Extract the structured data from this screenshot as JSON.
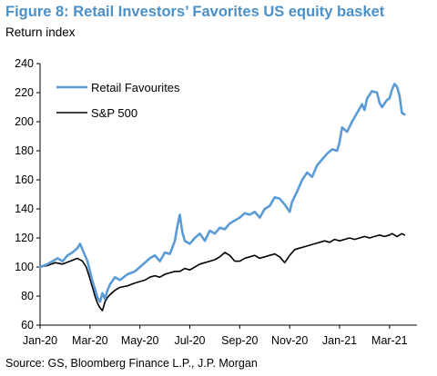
{
  "chart_data": {
    "type": "line",
    "title": "Figure 8: Retail Investors’ Favorites US equity basket",
    "subtitle": "Return index",
    "source": "Source: GS, Bloomberg Finance L.P., J.P. Morgan",
    "ylim": [
      60,
      240
    ],
    "yticks": [
      60,
      80,
      100,
      120,
      140,
      160,
      180,
      200,
      220,
      240
    ],
    "xlim": [
      0,
      15.1
    ],
    "xticks": [
      {
        "x": 0,
        "label": "Jan-20"
      },
      {
        "x": 2,
        "label": "Mar-20"
      },
      {
        "x": 4,
        "label": "May-20"
      },
      {
        "x": 6,
        "label": "Jul-20"
      },
      {
        "x": 8,
        "label": "Sep-20"
      },
      {
        "x": 10,
        "label": "Nov-20"
      },
      {
        "x": 12,
        "label": "Jan-21"
      },
      {
        "x": 14,
        "label": "Mar-21"
      }
    ],
    "grid": false,
    "legend": "top-left",
    "series": [
      {
        "name": "Retail Favourites",
        "color": "#5b9bd5",
        "points": [
          [
            0,
            100
          ],
          [
            0.3,
            102
          ],
          [
            0.5,
            104
          ],
          [
            0.7,
            106
          ],
          [
            0.9,
            104
          ],
          [
            1.1,
            108
          ],
          [
            1.3,
            110
          ],
          [
            1.5,
            113
          ],
          [
            1.6,
            116
          ],
          [
            1.75,
            110
          ],
          [
            1.9,
            104
          ],
          [
            2.0,
            97
          ],
          [
            2.1,
            90
          ],
          [
            2.2,
            85
          ],
          [
            2.3,
            79
          ],
          [
            2.4,
            76
          ],
          [
            2.5,
            82
          ],
          [
            2.6,
            78
          ],
          [
            2.7,
            84
          ],
          [
            2.8,
            88
          ],
          [
            3.0,
            93
          ],
          [
            3.2,
            91
          ],
          [
            3.5,
            95
          ],
          [
            3.8,
            97
          ],
          [
            4.0,
            100
          ],
          [
            4.2,
            103
          ],
          [
            4.4,
            106
          ],
          [
            4.6,
            108
          ],
          [
            4.8,
            104
          ],
          [
            5.0,
            110
          ],
          [
            5.2,
            109
          ],
          [
            5.4,
            118
          ],
          [
            5.5,
            128
          ],
          [
            5.6,
            136
          ],
          [
            5.7,
            124
          ],
          [
            5.8,
            118
          ],
          [
            6.0,
            116
          ],
          [
            6.2,
            120
          ],
          [
            6.4,
            123
          ],
          [
            6.6,
            118
          ],
          [
            6.8,
            125
          ],
          [
            7.0,
            123
          ],
          [
            7.2,
            127
          ],
          [
            7.4,
            126
          ],
          [
            7.6,
            130
          ],
          [
            7.8,
            132
          ],
          [
            8.0,
            134
          ],
          [
            8.2,
            137
          ],
          [
            8.4,
            136
          ],
          [
            8.6,
            138
          ],
          [
            8.8,
            134
          ],
          [
            9.0,
            140
          ],
          [
            9.2,
            142
          ],
          [
            9.4,
            148
          ],
          [
            9.6,
            147
          ],
          [
            9.8,
            143
          ],
          [
            10.0,
            138
          ],
          [
            10.1,
            145
          ],
          [
            10.3,
            152
          ],
          [
            10.5,
            160
          ],
          [
            10.7,
            165
          ],
          [
            10.9,
            162
          ],
          [
            11.1,
            170
          ],
          [
            11.3,
            174
          ],
          [
            11.5,
            178
          ],
          [
            11.7,
            181
          ],
          [
            11.9,
            180
          ],
          [
            12.0,
            186
          ],
          [
            12.1,
            196
          ],
          [
            12.3,
            193
          ],
          [
            12.5,
            200
          ],
          [
            12.7,
            206
          ],
          [
            12.9,
            212
          ],
          [
            13.0,
            208
          ],
          [
            13.1,
            216
          ],
          [
            13.3,
            221
          ],
          [
            13.5,
            220
          ],
          [
            13.6,
            213
          ],
          [
            13.7,
            210
          ],
          [
            13.9,
            215
          ],
          [
            14.0,
            216
          ],
          [
            14.1,
            222
          ],
          [
            14.2,
            226
          ],
          [
            14.3,
            224
          ],
          [
            14.4,
            218
          ],
          [
            14.5,
            206
          ],
          [
            14.6,
            205
          ]
        ]
      },
      {
        "name": "S&P 500",
        "color": "#000000",
        "points": [
          [
            0,
            100
          ],
          [
            0.3,
            101
          ],
          [
            0.6,
            103
          ],
          [
            0.9,
            102
          ],
          [
            1.2,
            104
          ],
          [
            1.5,
            106
          ],
          [
            1.7,
            104
          ],
          [
            1.85,
            100
          ],
          [
            2.0,
            92
          ],
          [
            2.1,
            86
          ],
          [
            2.2,
            80
          ],
          [
            2.3,
            75
          ],
          [
            2.4,
            72
          ],
          [
            2.5,
            70
          ],
          [
            2.6,
            76
          ],
          [
            2.7,
            79
          ],
          [
            2.8,
            81
          ],
          [
            3.0,
            84
          ],
          [
            3.2,
            86
          ],
          [
            3.5,
            87
          ],
          [
            3.8,
            89
          ],
          [
            4.0,
            90
          ],
          [
            4.2,
            91
          ],
          [
            4.4,
            93
          ],
          [
            4.6,
            94
          ],
          [
            4.8,
            93
          ],
          [
            5.0,
            95
          ],
          [
            5.2,
            96
          ],
          [
            5.4,
            97
          ],
          [
            5.6,
            97
          ],
          [
            5.8,
            99
          ],
          [
            6.0,
            98
          ],
          [
            6.2,
            100
          ],
          [
            6.4,
            102
          ],
          [
            6.6,
            103
          ],
          [
            6.8,
            104
          ],
          [
            7.0,
            105
          ],
          [
            7.2,
            107
          ],
          [
            7.4,
            110
          ],
          [
            7.6,
            108
          ],
          [
            7.8,
            104
          ],
          [
            8.0,
            104
          ],
          [
            8.2,
            106
          ],
          [
            8.4,
            107
          ],
          [
            8.6,
            108
          ],
          [
            8.8,
            106
          ],
          [
            9.0,
            107
          ],
          [
            9.2,
            108
          ],
          [
            9.4,
            109
          ],
          [
            9.6,
            107
          ],
          [
            9.8,
            103
          ],
          [
            10.0,
            108
          ],
          [
            10.2,
            112
          ],
          [
            10.4,
            113
          ],
          [
            10.6,
            114
          ],
          [
            10.8,
            115
          ],
          [
            11.0,
            116
          ],
          [
            11.2,
            117
          ],
          [
            11.4,
            118
          ],
          [
            11.6,
            117
          ],
          [
            11.8,
            119
          ],
          [
            12.0,
            118
          ],
          [
            12.2,
            119
          ],
          [
            12.4,
            120
          ],
          [
            12.6,
            119
          ],
          [
            12.8,
            120
          ],
          [
            13.0,
            121
          ],
          [
            13.2,
            120
          ],
          [
            13.4,
            121
          ],
          [
            13.6,
            122
          ],
          [
            13.8,
            121
          ],
          [
            14.0,
            122
          ],
          [
            14.1,
            123
          ],
          [
            14.3,
            121
          ],
          [
            14.5,
            123
          ],
          [
            14.6,
            122
          ]
        ]
      }
    ]
  }
}
